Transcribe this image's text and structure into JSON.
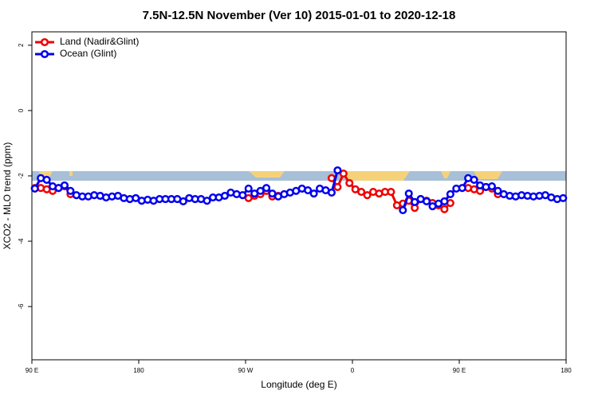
{
  "chart_data": {
    "type": "line",
    "title": "7.5N-12.5N November (Ver 10)   2015-01-01 to 2020-12-18",
    "x_label": "Longitude (deg E)",
    "y_label": "XCO2 - MLO trend (ppm)",
    "x": [
      92.5,
      97.5,
      102.5,
      107.5,
      112.5,
      117.5,
      122.5,
      127.5,
      132.5,
      137.5,
      142.5,
      147.5,
      152.5,
      157.5,
      162.5,
      167.5,
      172.5,
      177.5,
      182.5,
      187.5,
      192.5,
      197.5,
      202.5,
      207.5,
      212.5,
      217.5,
      222.5,
      227.5,
      232.5,
      237.5,
      242.5,
      247.5,
      252.5,
      257.5,
      262.5,
      267.5,
      272.5,
      277.5,
      282.5,
      287.5,
      292.5,
      297.5,
      302.5,
      307.5,
      312.5,
      317.5,
      322.5,
      327.5,
      332.5,
      337.5,
      342.5,
      347.5,
      352.5,
      357.5,
      362.5,
      367.5,
      372.5,
      377.5,
      382.5,
      387.5,
      392.5,
      397.5,
      402.5,
      407.5,
      412.5,
      417.5,
      422.5,
      427.5,
      432.5,
      437.5,
      442.5,
      447.5,
      452.5,
      457.5,
      462.5,
      467.5,
      472.5,
      477.5,
      482.5,
      487.5,
      492.5,
      497.5,
      502.5,
      507.5,
      512.5,
      517.5,
      522.5,
      527.5,
      532.5,
      537.5
    ],
    "series": [
      {
        "name": "Land (Nadir&Glint)",
        "color": "#ee0000",
        "values": [
          -2.37,
          -2.37,
          -2.41,
          -2.46,
          -2.37,
          -2.32,
          -2.56,
          null,
          null,
          null,
          null,
          null,
          null,
          null,
          null,
          null,
          null,
          null,
          null,
          null,
          null,
          null,
          null,
          null,
          null,
          null,
          null,
          null,
          null,
          null,
          null,
          null,
          null,
          null,
          null,
          null,
          -2.68,
          -2.61,
          -2.56,
          -2.46,
          -2.63,
          -2.61,
          null,
          null,
          null,
          null,
          null,
          null,
          null,
          null,
          -2.07,
          -2.34,
          -1.93,
          -2.22,
          -2.41,
          -2.49,
          -2.59,
          -2.49,
          -2.54,
          -2.49,
          -2.49,
          -2.9,
          -2.85,
          -2.76,
          -2.98,
          -2.71,
          -2.76,
          -2.83,
          -2.9,
          -3.02,
          -2.83,
          null,
          null,
          -2.37,
          -2.41,
          -2.46,
          -2.34,
          -2.39,
          -2.56,
          null,
          null,
          null,
          null,
          null,
          null,
          null,
          null,
          null,
          null,
          null
        ]
      },
      {
        "name": "Ocean (Glint)",
        "color": "#0000ee",
        "values": [
          -2.39,
          -2.07,
          -2.12,
          -2.32,
          -2.37,
          -2.29,
          -2.46,
          -2.59,
          -2.63,
          -2.63,
          -2.59,
          -2.61,
          -2.66,
          -2.63,
          -2.61,
          -2.68,
          -2.71,
          -2.68,
          -2.76,
          -2.73,
          -2.76,
          -2.71,
          -2.71,
          -2.71,
          -2.71,
          -2.78,
          -2.68,
          -2.71,
          -2.71,
          -2.76,
          -2.66,
          -2.66,
          -2.61,
          -2.51,
          -2.56,
          -2.59,
          -2.39,
          -2.54,
          -2.46,
          -2.37,
          -2.54,
          -2.63,
          -2.56,
          -2.51,
          -2.46,
          -2.39,
          -2.44,
          -2.54,
          -2.39,
          -2.44,
          -2.51,
          -1.83,
          null,
          null,
          null,
          null,
          null,
          null,
          null,
          null,
          null,
          null,
          -3.05,
          -2.54,
          -2.8,
          -2.71,
          -2.78,
          -2.93,
          -2.85,
          -2.78,
          -2.56,
          -2.39,
          -2.37,
          -2.07,
          -2.12,
          -2.29,
          -2.34,
          -2.32,
          -2.46,
          -2.56,
          -2.61,
          -2.63,
          -2.59,
          -2.61,
          -2.63,
          -2.61,
          -2.59,
          -2.66,
          -2.71,
          -2.68
        ]
      }
    ],
    "xlim": [
      90,
      540
    ],
    "xticks": [
      {
        "value": 90,
        "label": "90 E"
      },
      180,
      {
        "value": 270,
        "label": "90 W"
      },
      {
        "value": 360,
        "label": "0"
      },
      {
        "value": 450,
        "label": "90 E"
      },
      {
        "value": 540,
        "label": "180"
      }
    ],
    "ylim": [
      -7.63,
      2.41
    ],
    "yticks": [
      -6,
      -4,
      -2,
      0,
      2
    ],
    "legend": "top-left"
  }
}
